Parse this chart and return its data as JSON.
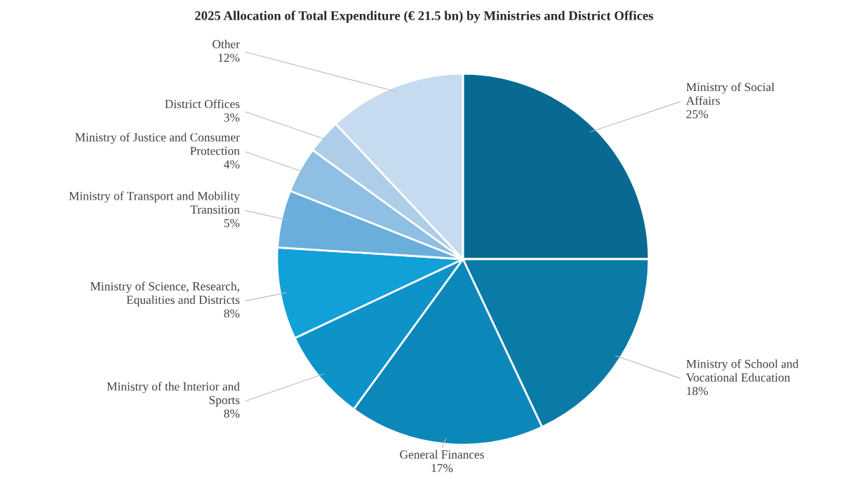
{
  "chart_data": {
    "type": "pie",
    "title": "2025 Allocation of Total Expenditure (€ 21.5 bn) by Ministries and District Offices",
    "categories": [
      "Ministry of Social Affairs",
      "Ministry of School and Vocational Education",
      "General Finances",
      "Ministry of the Interior and Sports",
      "Ministry of Science, Research, Equalities and Districts",
      "Ministry of Transport and Mobility Transition",
      "Ministry of Justice and Consumer Protection",
      "District Offices",
      "Other"
    ],
    "values": [
      25,
      18,
      17,
      8,
      8,
      5,
      4,
      3,
      12
    ],
    "value_labels": [
      "25%",
      "18%",
      "17%",
      "8%",
      "8%",
      "5%",
      "4%",
      "3%",
      "12%"
    ],
    "colors": [
      "#086a91",
      "#0a7aa6",
      "#0b87ba",
      "#0d93c8",
      "#12a0d9",
      "#6aaedc",
      "#8fbfe2",
      "#aecde8",
      "#c6dbef"
    ]
  }
}
